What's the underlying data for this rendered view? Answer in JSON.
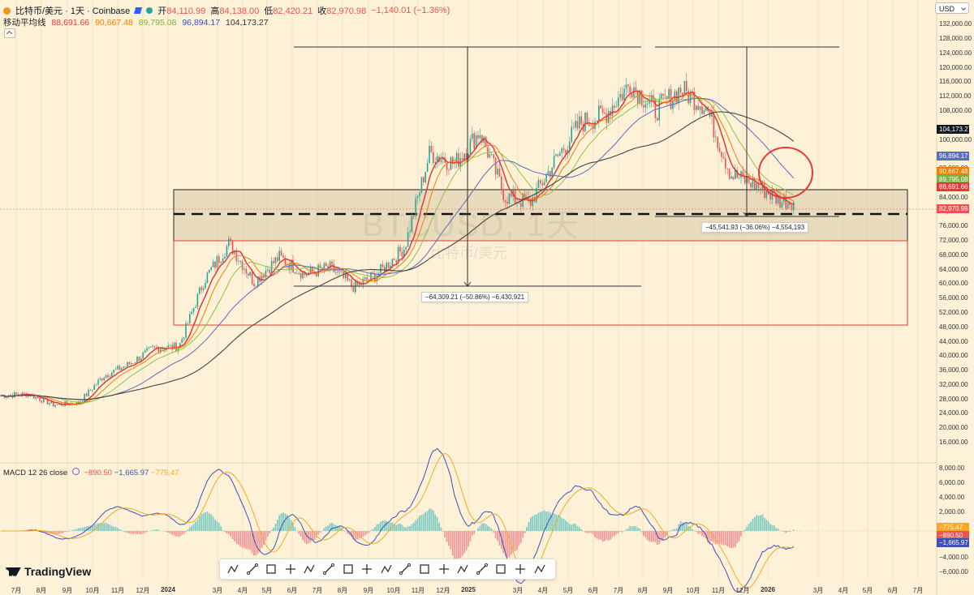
{
  "header": {
    "symbol": "比特币/美元 · 1天 · Coinbase",
    "open_label": "开",
    "open": "84,110.99",
    "high_label": "高",
    "high": "84,138.00",
    "low_label": "低",
    "low": "82,420.21",
    "close_label": "收",
    "close": "82,970.98",
    "change": "−1,140.01 (−1.36%)"
  },
  "ma_indicator": {
    "label": "移动平均线",
    "values": [
      "88,691.66",
      "90,667.48",
      "89,795.08",
      "96,894.17",
      "104,173.27"
    ],
    "colors": [
      "#e53935",
      "#f57c00",
      "#8bc34a",
      "#5c6bc0",
      "#444444"
    ]
  },
  "macd_indicator": {
    "label": "MACD 12 26 close",
    "values": [
      "−890.50",
      "−1,665.97",
      "−775.47"
    ]
  },
  "currency_selector": "USD",
  "watermark": {
    "main": "BTCUSD, 1天",
    "sub": "比特币/美元"
  },
  "price_axis": [
    "132,000.00",
    "128,000.00",
    "124,000.00",
    "120,000.00",
    "116,000.00",
    "112,000.00",
    "108,000.00",
    "100,000.00",
    "92,000.00",
    "84,000.00",
    "80,000.00",
    "76,000.00",
    "72,000.00",
    "68,000.00",
    "64,000.00",
    "60,000.00",
    "56,000.00",
    "52,000.00",
    "48,000.00",
    "44,000.00",
    "40,000.00",
    "36,000.00",
    "32,000.00",
    "28,000.00",
    "24,000.00",
    "20,000.00",
    "16,000.00"
  ],
  "price_labels": [
    {
      "text": "104,173.27",
      "color": "#131722"
    },
    {
      "text": "96,894.17",
      "color": "#5c6bc0"
    },
    {
      "text": "90,667.48",
      "color": "#f57c00"
    },
    {
      "text": "89,795.08",
      "color": "#7cb342"
    },
    {
      "text": "88,691.66",
      "color": "#e53935"
    },
    {
      "text": "82,970.98",
      "color": "#ef5350"
    }
  ],
  "macd_axis": [
    "8,000.00",
    "6,000.00",
    "4,000.00",
    "2,000.00",
    "−4,000.00",
    "−6,000.00"
  ],
  "macd_labels": [
    {
      "text": "−775.47",
      "color": "#f9a825"
    },
    {
      "text": "−890.50",
      "color": "#ef5350"
    },
    {
      "text": "−1,665.97",
      "color": "#3f51b5"
    }
  ],
  "time_axis": [
    "7月",
    "8月",
    "9月",
    "10月",
    "11月",
    "12月",
    "2024",
    "3月",
    "4月",
    "5月",
    "6月",
    "7月",
    "8月",
    "9月",
    "10月",
    "11月",
    "12月",
    "2025",
    "3月",
    "4月",
    "5月",
    "6月",
    "7月",
    "8月",
    "9月",
    "10月",
    "11月",
    "12月",
    "2026",
    "3月",
    "4月",
    "5月",
    "6月",
    "7月"
  ],
  "measurements": [
    {
      "text": "−64,309.21 (−50.86%) −6,430,921"
    },
    {
      "text": "−45,541.93 (−36.06%) −4,554,193"
    }
  ],
  "brand": "TradingView",
  "toolbar_icons": [
    "abcd-pattern-icon",
    "trend-line-icon",
    "ray-icon",
    "extended-line-icon",
    "xabcd-pattern-icon",
    "rectangle-icon",
    "elliott-wave-icon",
    "parallel-channel-icon",
    "horizontal-ray-icon",
    "crosshair-icon",
    "triple-drive-icon",
    "curve-icon",
    "vertical-text-icon",
    "fib-retracement-icon",
    "head-shoulders-icon",
    "cypher-pattern-icon",
    "date-price-range-icon"
  ],
  "chart_data": {
    "type": "candlestick",
    "title": "比特币/美元 · 1天 · Coinbase",
    "ylim": [
      16000,
      132000
    ],
    "close_series": [
      {
        "date": "2023-07",
        "close": 29500
      },
      {
        "date": "2023-08",
        "close": 26500
      },
      {
        "date": "2023-09",
        "close": 27000
      },
      {
        "date": "2023-10",
        "close": 34500
      },
      {
        "date": "2023-11",
        "close": 37700
      },
      {
        "date": "2023-12",
        "close": 42300
      },
      {
        "date": "2024-01",
        "close": 42600
      },
      {
        "date": "2024-02",
        "close": 61000
      },
      {
        "date": "2024-03",
        "close": 71300
      },
      {
        "date": "2024-04",
        "close": 60600
      },
      {
        "date": "2024-05",
        "close": 67500
      },
      {
        "date": "2024-06",
        "close": 62700
      },
      {
        "date": "2024-07",
        "close": 64600
      },
      {
        "date": "2024-08",
        "close": 59000
      },
      {
        "date": "2024-09",
        "close": 63300
      },
      {
        "date": "2024-10",
        "close": 70200
      },
      {
        "date": "2024-11",
        "close": 96400
      },
      {
        "date": "2024-12",
        "close": 93400
      },
      {
        "date": "2025-01",
        "close": 102400
      },
      {
        "date": "2025-02",
        "close": 84300
      },
      {
        "date": "2025-03",
        "close": 82500
      },
      {
        "date": "2025-04",
        "close": 94200
      },
      {
        "date": "2025-05",
        "close": 104600
      },
      {
        "date": "2025-06",
        "close": 107100
      },
      {
        "date": "2025-07",
        "close": 115700
      },
      {
        "date": "2025-08",
        "close": 108200
      },
      {
        "date": "2025-09",
        "close": 114000
      },
      {
        "date": "2025-10",
        "close": 109500
      },
      {
        "date": "2025-11",
        "close": 90400
      },
      {
        "date": "2025-12",
        "close": 87500
      },
      {
        "date": "2026-01",
        "close": 82971
      }
    ],
    "levels": {
      "dashed_level": 81500,
      "zone_top": 88800,
      "zone_bottom": 74000,
      "red_zone_top": 74000,
      "red_zone_bottom": 51500
    }
  }
}
